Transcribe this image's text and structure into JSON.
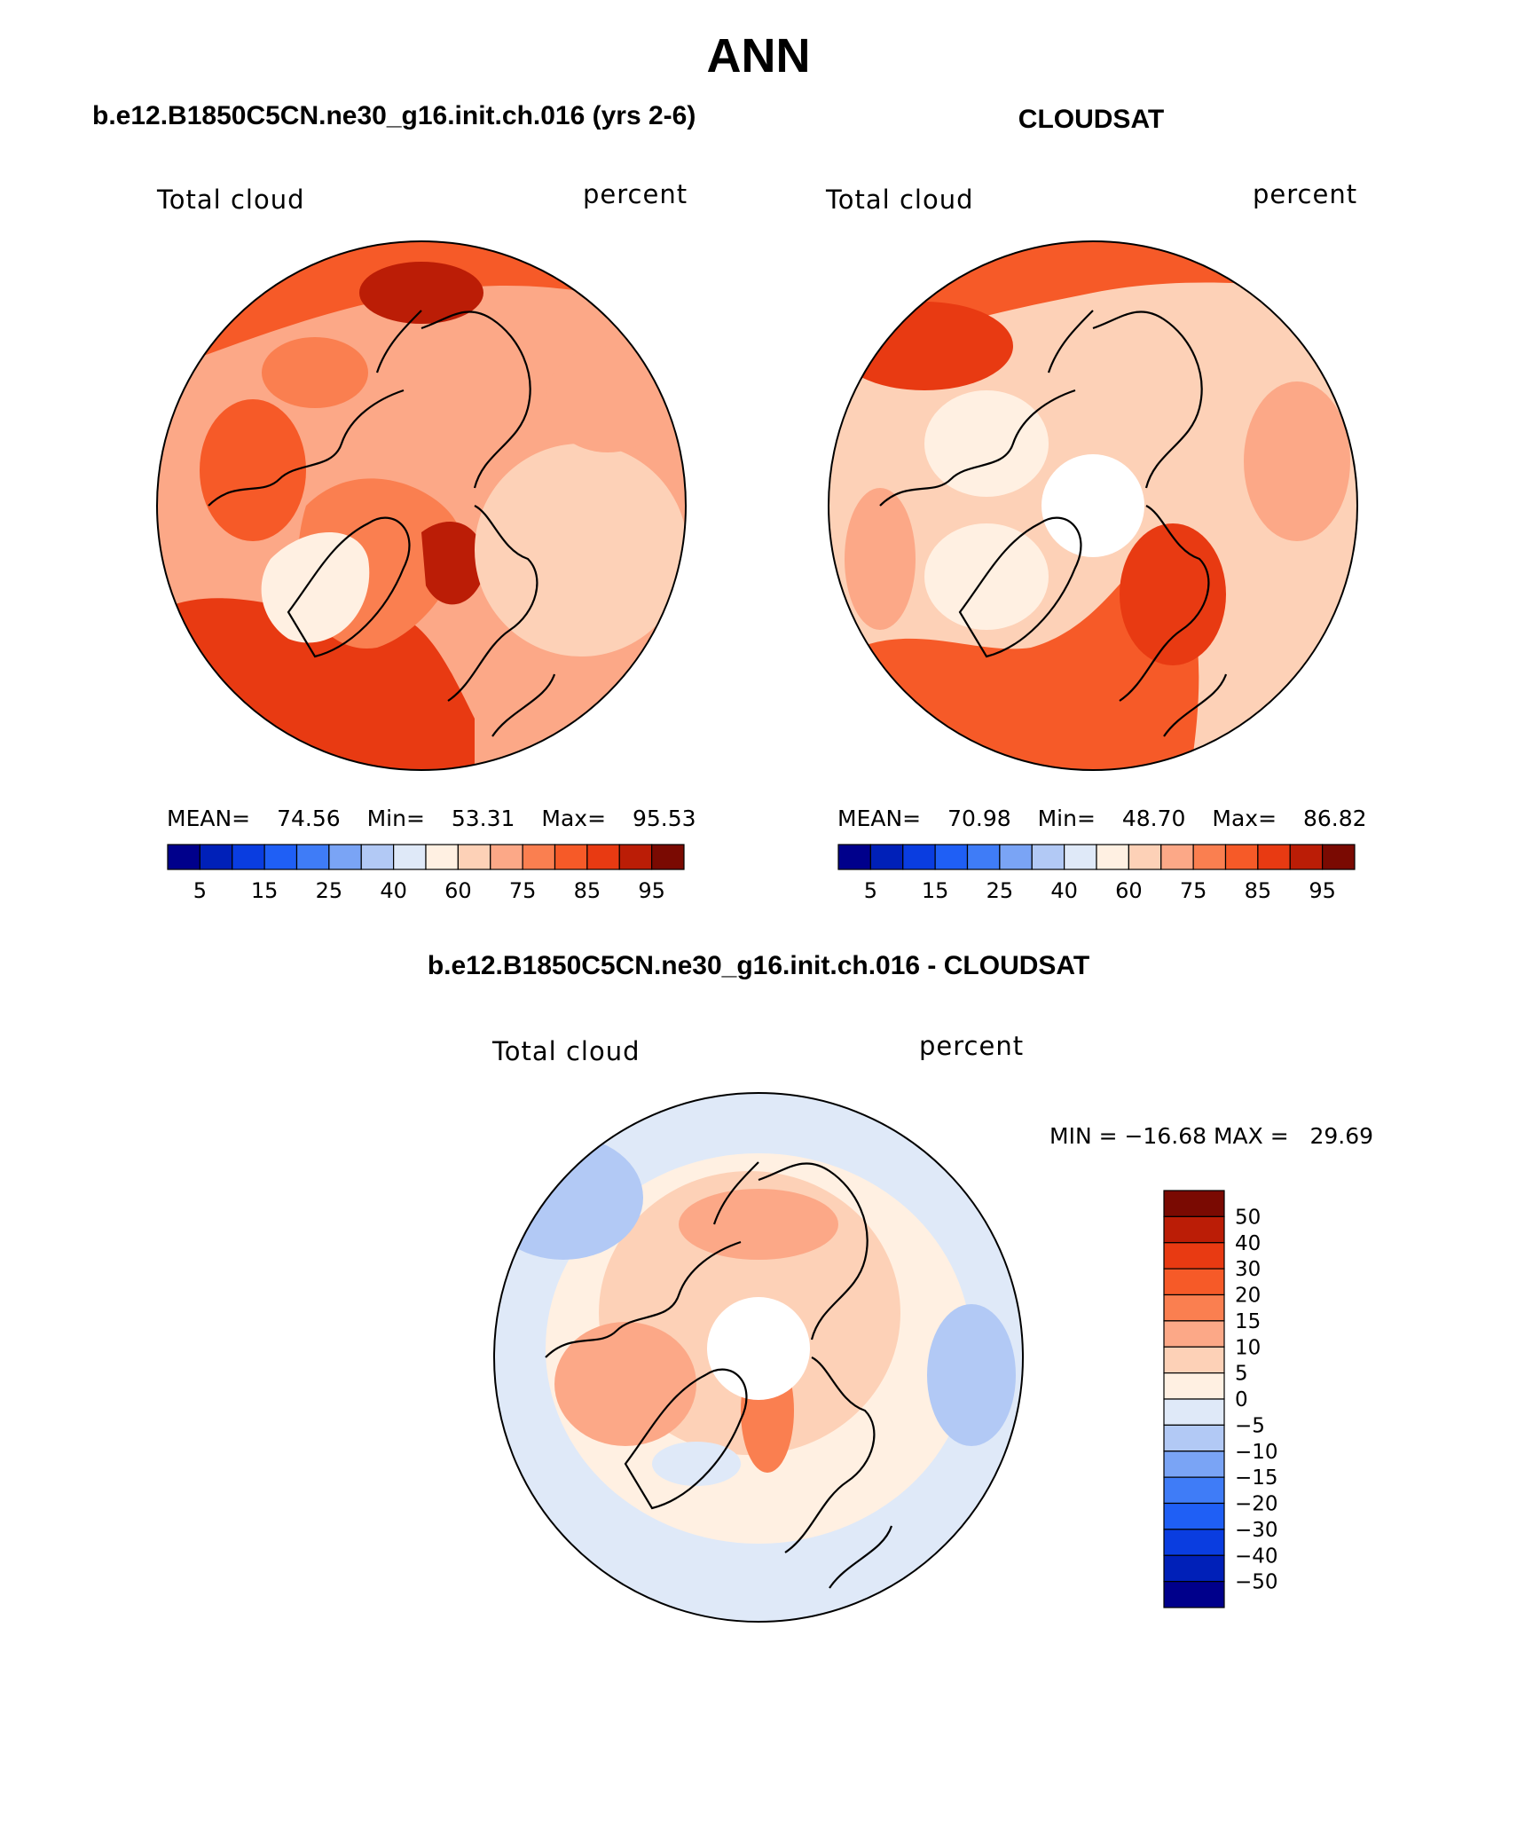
{
  "page_title": "ANN",
  "panels": [
    {
      "title": "b.e12.B1850C5CN.ne30_g16.init.ch.016 (yrs 2-6)",
      "left_label": "Total cloud",
      "right_label": "percent",
      "stats": {
        "mean_label": "MEAN=",
        "mean": "74.56",
        "min_label": "Min=",
        "min": "53.31",
        "max_label": "Max=",
        "max": "95.53"
      },
      "pole_mask": false
    },
    {
      "title": "CLOUDSAT",
      "left_label": "Total cloud",
      "right_label": "percent",
      "stats": {
        "mean_label": "MEAN=",
        "mean": "70.98",
        "min_label": "Min=",
        "min": "48.70",
        "max_label": "Max=",
        "max": "86.82"
      },
      "pole_mask": true
    }
  ],
  "abs_colorbar": {
    "colors": [
      "#00008b",
      "#0020b8",
      "#0a3de0",
      "#1f5ff5",
      "#3f7cf7",
      "#7aa4f5",
      "#b2c9f5",
      "#dfe9f8",
      "#fff0e2",
      "#fdd1b7",
      "#fca887",
      "#fa7f50",
      "#f65a28",
      "#e83a12",
      "#bb1d06",
      "#7a0a02"
    ],
    "tick_labels": [
      "5",
      "15",
      "25",
      "40",
      "60",
      "75",
      "85",
      "95"
    ],
    "tick_boundaries": [
      1,
      3,
      5,
      7,
      9,
      11,
      13,
      15
    ]
  },
  "difference": {
    "title": "b.e12.B1850C5CN.ne30_g16.init.ch.016 - CLOUDSAT",
    "left_label": "Total cloud",
    "right_label": "percent",
    "minmax_text": "MIN = −16.68 MAX =   29.69",
    "colorbar": {
      "colors": [
        "#7a0a02",
        "#bb1d06",
        "#e83a12",
        "#f65a28",
        "#fa7f50",
        "#fca887",
        "#fdd1b7",
        "#fff0e2",
        "#dfe9f8",
        "#b2c9f5",
        "#7aa4f5",
        "#3f7cf7",
        "#1f5ff5",
        "#0a3de0",
        "#0020b8",
        "#00008b"
      ],
      "labels": [
        "50",
        "40",
        "30",
        "20",
        "15",
        "10",
        "5",
        "0",
        "−5",
        "−10",
        "−15",
        "−20",
        "−30",
        "−40",
        "−50"
      ]
    }
  }
}
